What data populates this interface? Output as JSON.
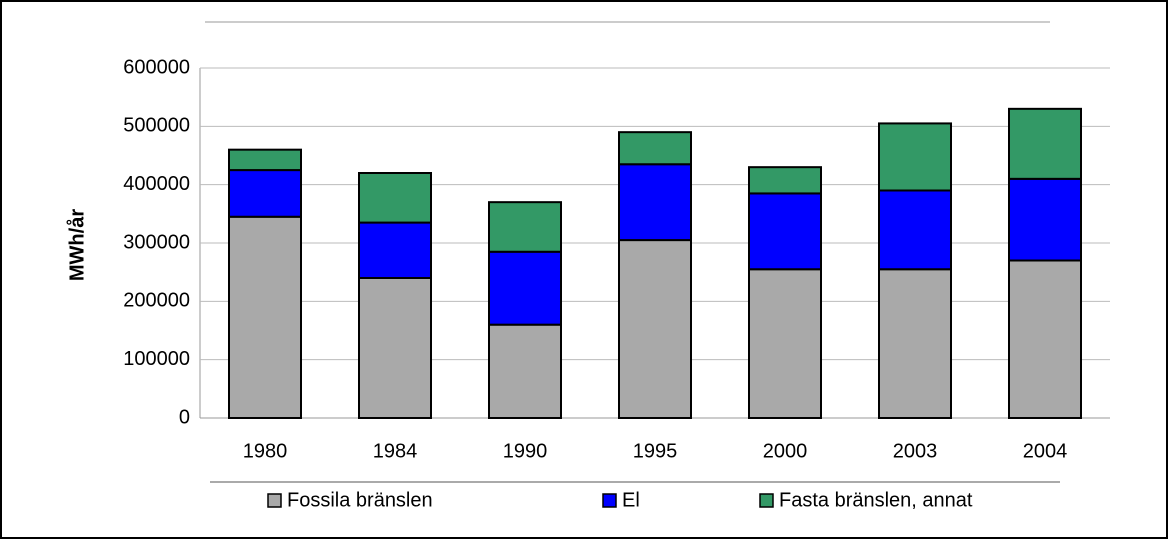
{
  "chart_data": {
    "type": "stacked_bar",
    "y_label": "MWh/år",
    "categories": [
      "1980",
      "1984",
      "1990",
      "1995",
      "2000",
      "2003",
      "2004"
    ],
    "series": [
      {
        "name": "Fossila bränslen",
        "color": "#a9a9a9",
        "values": [
          345000,
          240000,
          160000,
          305000,
          255000,
          255000,
          270000
        ]
      },
      {
        "name": "El",
        "color": "#0000ff",
        "values": [
          80000,
          95000,
          125000,
          130000,
          130000,
          135000,
          140000
        ]
      },
      {
        "name": "Fasta bränslen, annat",
        "color": "#339966",
        "values": [
          35000,
          85000,
          85000,
          55000,
          45000,
          115000,
          120000
        ]
      }
    ],
    "ylim": [
      0,
      600000
    ],
    "yticks": [
      0,
      100000,
      200000,
      300000,
      400000,
      500000,
      600000
    ],
    "grid": true,
    "legend": "bottom"
  }
}
